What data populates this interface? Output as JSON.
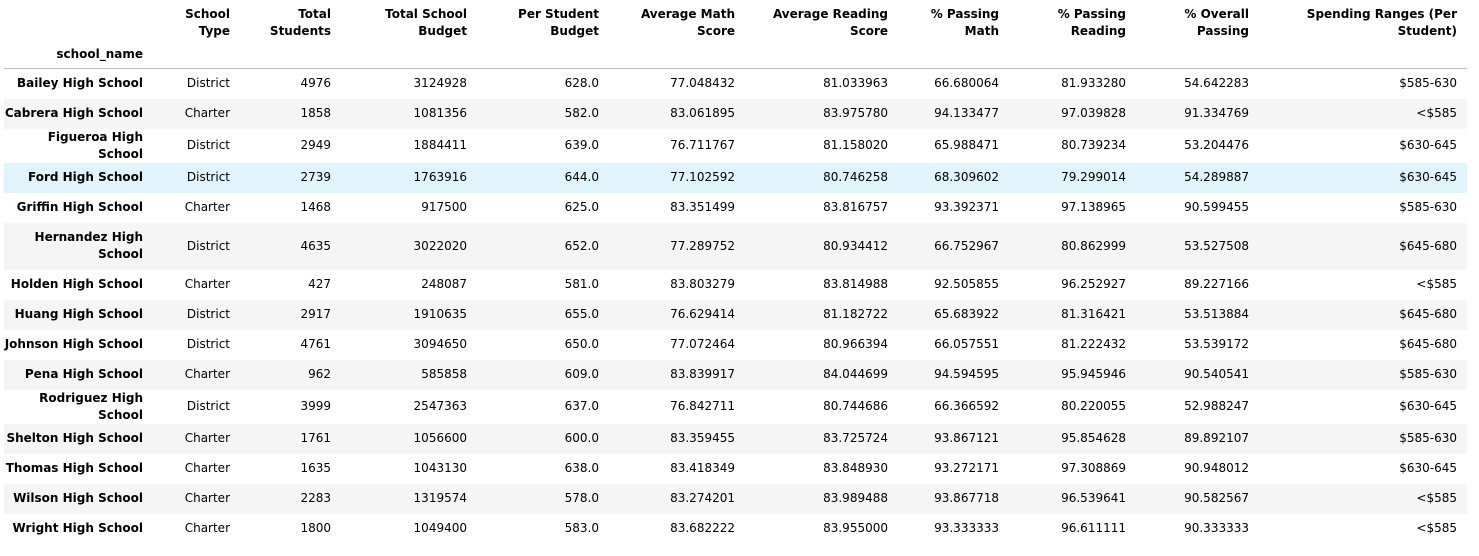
{
  "table": {
    "index_name": "school_name",
    "columns": [
      "School Type",
      "Total Students",
      "Total School Budget",
      "Per Student Budget",
      "Average Math Score",
      "Average Reading Score",
      "% Passing Math",
      "% Passing Reading",
      "% Overall Passing",
      "Spending Ranges (Per Student)"
    ],
    "rows": [
      {
        "name": "Bailey High School",
        "values": [
          "District",
          "4976",
          "3124928",
          "628.0",
          "77.048432",
          "81.033963",
          "66.680064",
          "81.933280",
          "54.642283",
          "$585-630"
        ]
      },
      {
        "name": "Cabrera High School",
        "values": [
          "Charter",
          "1858",
          "1081356",
          "582.0",
          "83.061895",
          "83.975780",
          "94.133477",
          "97.039828",
          "91.334769",
          "<$585"
        ]
      },
      {
        "name": "Figueroa High School",
        "values": [
          "District",
          "2949",
          "1884411",
          "639.0",
          "76.711767",
          "81.158020",
          "65.988471",
          "80.739234",
          "53.204476",
          "$630-645"
        ]
      },
      {
        "name": "Ford High School",
        "values": [
          "District",
          "2739",
          "1763916",
          "644.0",
          "77.102592",
          "80.746258",
          "68.309602",
          "79.299014",
          "54.289887",
          "$630-645"
        ]
      },
      {
        "name": "Griffin High School",
        "values": [
          "Charter",
          "1468",
          "917500",
          "625.0",
          "83.351499",
          "83.816757",
          "93.392371",
          "97.138965",
          "90.599455",
          "$585-630"
        ]
      },
      {
        "name": "Hernandez High School",
        "values": [
          "District",
          "4635",
          "3022020",
          "652.0",
          "77.289752",
          "80.934412",
          "66.752967",
          "80.862999",
          "53.527508",
          "$645-680"
        ]
      },
      {
        "name": "Holden High School",
        "values": [
          "Charter",
          "427",
          "248087",
          "581.0",
          "83.803279",
          "83.814988",
          "92.505855",
          "96.252927",
          "89.227166",
          "<$585"
        ]
      },
      {
        "name": "Huang High School",
        "values": [
          "District",
          "2917",
          "1910635",
          "655.0",
          "76.629414",
          "81.182722",
          "65.683922",
          "81.316421",
          "53.513884",
          "$645-680"
        ]
      },
      {
        "name": "Johnson High School",
        "values": [
          "District",
          "4761",
          "3094650",
          "650.0",
          "77.072464",
          "80.966394",
          "66.057551",
          "81.222432",
          "53.539172",
          "$645-680"
        ]
      },
      {
        "name": "Pena High School",
        "values": [
          "Charter",
          "962",
          "585858",
          "609.0",
          "83.839917",
          "84.044699",
          "94.594595",
          "95.945946",
          "90.540541",
          "$585-630"
        ]
      },
      {
        "name": "Rodriguez High School",
        "values": [
          "District",
          "3999",
          "2547363",
          "637.0",
          "76.842711",
          "80.744686",
          "66.366592",
          "80.220055",
          "52.988247",
          "$630-645"
        ]
      },
      {
        "name": "Shelton High School",
        "values": [
          "Charter",
          "1761",
          "1056600",
          "600.0",
          "83.359455",
          "83.725724",
          "93.867121",
          "95.854628",
          "89.892107",
          "$585-630"
        ]
      },
      {
        "name": "Thomas High School",
        "values": [
          "Charter",
          "1635",
          "1043130",
          "638.0",
          "83.418349",
          "83.848930",
          "93.272171",
          "97.308869",
          "90.948012",
          "$630-645"
        ]
      },
      {
        "name": "Wilson High School",
        "values": [
          "Charter",
          "2283",
          "1319574",
          "578.0",
          "83.274201",
          "83.989488",
          "93.867718",
          "96.539641",
          "90.582567",
          "<$585"
        ]
      },
      {
        "name": "Wright High School",
        "values": [
          "Charter",
          "1800",
          "1049400",
          "583.0",
          "83.682222",
          "83.955000",
          "93.333333",
          "96.611111",
          "90.333333",
          "<$585"
        ]
      }
    ],
    "hover_row": 3,
    "colors": {
      "odd_row": "#ffffff",
      "even_row": "#f5f5f5",
      "hover_row": "#e1f3fb",
      "header_rule": "#bdbdbd"
    }
  }
}
